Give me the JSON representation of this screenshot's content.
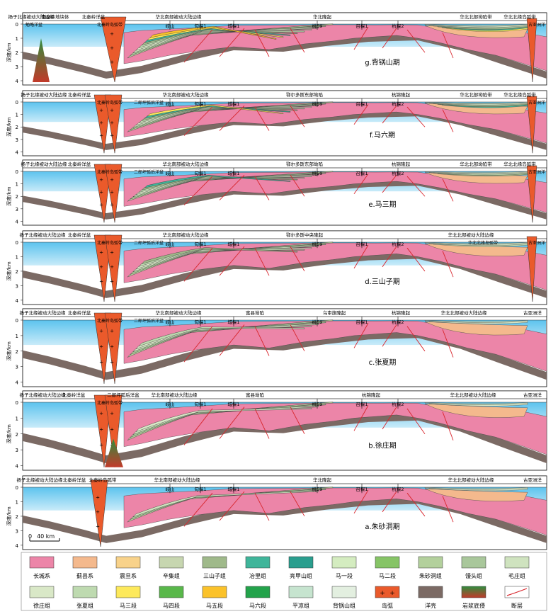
{
  "panels": [
    {
      "id": "g",
      "title": "g.背锅山期",
      "tectonic_units": [
        "扬子北缘被动大陆边缘",
        "南秦岭地块体",
        "北秦岭洋盆",
        "华北南部被动大陆边缘",
        "华北隆起",
        "华北北部坳陷带",
        "华北北缘岛弧带"
      ],
      "sub_labels": [
        "勉略洋盆",
        "北秦岭岛弧带",
        "古亚洲洋"
      ],
      "wells": [
        "岐山",
        "旬探1",
        "城探1",
        "桃59",
        "召探1",
        "杭探2"
      ]
    },
    {
      "id": "f",
      "title": "f.马六期",
      "tectonic_units": [
        "扬子北缘被动大陆边缘",
        "北秦岭洋盆",
        "华北南部被动大陆边缘",
        "鄂尔多斯东部坳陷",
        "杭锦隆起",
        "华北北部坳陷带",
        "华北北缘岛弧带"
      ],
      "sub_labels": [
        "北秦岭岛弧带",
        "二郎坪弧后洋盆",
        "古亚洲洋"
      ],
      "wells": [
        "岐山",
        "旬探1",
        "城探1",
        "桃59",
        "召探1",
        "杭探2"
      ]
    },
    {
      "id": "e",
      "title": "e.马三期",
      "tectonic_units": [
        "扬子北缘被动大陆边缘",
        "北秦岭洋盆",
        "华北南部被动大陆边缘",
        "鄂尔多斯东部坳陷",
        "杭锦隆起",
        "华北北部坳陷带",
        "华北北缘岛弧带"
      ],
      "sub_labels": [
        "北秦岭岛弧带",
        "二郎坪弧后洋盆",
        "古亚洲洋"
      ],
      "wells": [
        "岐山",
        "旬探1",
        "城探1",
        "桃59",
        "召探1",
        "杭探2"
      ]
    },
    {
      "id": "d",
      "title": "d.三山子期",
      "tectonic_units": [
        "扬子北缘被动大陆边缘",
        "北秦岭洋盆",
        "华北南部被动大陆边缘",
        "鄂尔多斯中央隆起",
        "华北北部被动大陆边缘"
      ],
      "sub_labels": [
        "北秦岭岛弧带",
        "二郎坪弧后洋盆",
        "华北北缘岛弧带",
        "古亚洲洋"
      ],
      "wells": [
        "岐山",
        "旬探1",
        "城探1",
        "桃59",
        "召探1",
        "杭探2"
      ]
    },
    {
      "id": "c",
      "title": "c.张夏期",
      "tectonic_units": [
        "扬子北缘被动大陆边缘",
        "北秦岭洋盆",
        "华北南部被动大陆边缘",
        "富县坳陷",
        "乌审旗隆起",
        "杭锦隆起",
        "华北北部被动大陆边缘",
        "古亚洲洋"
      ],
      "sub_labels": [
        "北秦岭岛弧带",
        "二郎坪弧后洋盆"
      ],
      "wells": [
        "岐山",
        "旬探1",
        "城探1",
        "桃59",
        "召探1",
        "杭探2"
      ]
    },
    {
      "id": "b",
      "title": "b.徐庄期",
      "tectonic_units": [
        "扬子北缘被动大陆边缘",
        "北秦岭洋盆",
        "二郎坪弧后洋盆",
        "华北南部被动大陆边缘",
        "富县坳陷",
        "杭锦隆起",
        "华北北部被动大陆边缘",
        "古亚洲洋"
      ],
      "sub_labels": [
        "北秦岭岛弧带"
      ],
      "wells": [
        "岐山",
        "旬探1",
        "城探1",
        "桃59",
        "召探1",
        "杭探2"
      ]
    },
    {
      "id": "a",
      "title": "a.朱砂洞期",
      "tectonic_units": [
        "扬子北缘被动大陆边缘",
        "北秦岭洋盆",
        "北秦岭岛弧带",
        "华北南部被动大陆边缘",
        "华北隆起",
        "华北北部被动大陆边缘",
        "古亚洲洋"
      ],
      "sub_labels": [],
      "wells": [
        "岐山",
        "旬探1",
        "城探1",
        "桃59",
        "召探1",
        "杭探2"
      ]
    }
  ],
  "depth_axis": {
    "label": "深度/km",
    "ticks": [
      "0",
      "1",
      "2",
      "3",
      "4"
    ]
  },
  "scale_bar": {
    "label": "40 km",
    "zero": "0"
  },
  "legend": {
    "items": [
      {
        "label": "长城系",
        "color": "#ec85a8"
      },
      {
        "label": "蓟县系",
        "color": "#f4b98d"
      },
      {
        "label": "震旦系",
        "color": "#f8d28a"
      },
      {
        "label": "辛集组",
        "color": "#c7d6b0"
      },
      {
        "label": "三山子组",
        "color": "#9fb98a"
      },
      {
        "label": "冶里组",
        "color": "#3fb59a"
      },
      {
        "label": "亮甲山组",
        "color": "#2a9e8e"
      },
      {
        "label": "马一段",
        "color": "#d4ecc0"
      },
      {
        "label": "马二段",
        "color": "#86c466"
      },
      {
        "label": "朱砂洞组",
        "color": "#b3d09c"
      },
      {
        "label": "馒头组",
        "color": "#a9c79b"
      },
      {
        "label": "毛庄组",
        "color": "#cfe3bf"
      },
      {
        "label": "徐庄组",
        "color": "#d9e8c7"
      },
      {
        "label": "张夏组",
        "color": "#bedab0"
      },
      {
        "label": "马三段",
        "color": "#fde95b"
      },
      {
        "label": "马四段",
        "color": "#59b84a"
      },
      {
        "label": "马五段",
        "color": "#fbc22a"
      },
      {
        "label": "马六段",
        "color": "#23a34b"
      },
      {
        "label": "平凉组",
        "color": "#c6e4cf"
      },
      {
        "label": "背锅山组",
        "color": "#e3efe0"
      },
      {
        "label": "岛弧",
        "color": "#ea5a2b"
      },
      {
        "label": "洋壳",
        "color": "#7b6a64"
      },
      {
        "label": "岩浆底侵",
        "color": "#2f8d3e"
      },
      {
        "label": "断层",
        "color": "#d8262d"
      }
    ]
  },
  "colors": {
    "sea_top": "#5cc3ee",
    "sea_bottom": "#c7e9f8",
    "basement": "#ec85a8",
    "crust": "#7b6a64",
    "arc": "#ea5a2b",
    "fault": "#d8262d"
  }
}
